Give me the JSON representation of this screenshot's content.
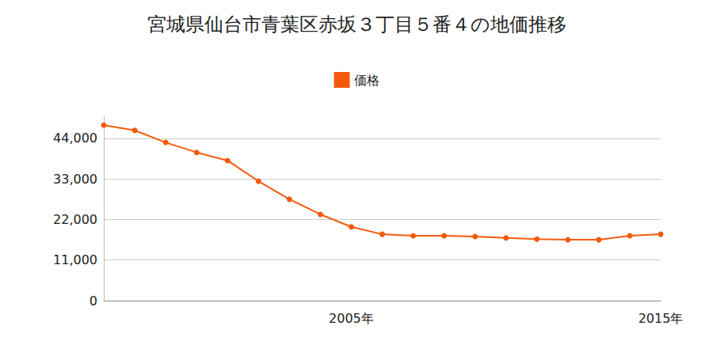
{
  "chart_data": {
    "type": "line",
    "title": "宮城県仙台市青葉区赤坂３丁目５番４の地価推移",
    "categories": [
      null,
      null,
      null,
      null,
      null,
      null,
      null,
      null,
      "2005年",
      null,
      null,
      null,
      null,
      null,
      null,
      null,
      null,
      null,
      "2015年"
    ],
    "series": [
      {
        "name": "価格",
        "color": "#f35a0c",
        "marker": "circle",
        "values": [
          47600,
          46200,
          42900,
          40200,
          38000,
          32400,
          27500,
          23400,
          20000,
          18000,
          17600,
          17600,
          17400,
          17000,
          16700,
          16500,
          16500,
          17600,
          18000
        ]
      }
    ],
    "ylim": [
      0,
      50000
    ],
    "yticks": [
      0,
      {
        "value": 11000,
        "label": "11,000"
      },
      {
        "value": 22000,
        "label": "22,000"
      },
      {
        "value": 33000,
        "label": "33,000"
      },
      {
        "value": 44000,
        "label": "44,000"
      }
    ],
    "grid": true,
    "legend": "top"
  }
}
